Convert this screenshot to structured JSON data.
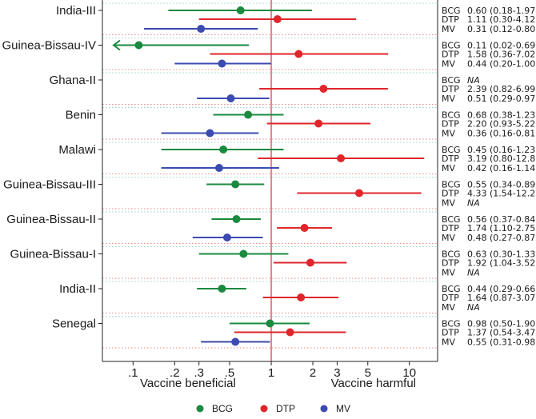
{
  "colors": {
    "BCG": "#1a8a3e",
    "DTP": "#e0262b",
    "MV": "#3b4bb0"
  },
  "chart_data": {
    "type": "forest",
    "x_scale": "log",
    "xlim": [
      0.06,
      16
    ],
    "reference_line": 1,
    "ticks": [
      {
        "value": 0.1,
        "label": ".1"
      },
      {
        "value": 0.2,
        "label": ".2"
      },
      {
        "value": 0.3,
        "label": ".3"
      },
      {
        "value": 0.5,
        "label": ".5"
      },
      {
        "value": 1,
        "label": "1"
      },
      {
        "value": 2,
        "label": "2"
      },
      {
        "value": 3,
        "label": "3"
      },
      {
        "value": 5,
        "label": "5"
      },
      {
        "value": 10,
        "label": "10"
      }
    ],
    "axis_captions": {
      "left": "Vaccine beneficial",
      "right": "Vaccine harmful"
    },
    "legend": [
      {
        "name": "BCG",
        "color_key": "BCG"
      },
      {
        "name": "DTP",
        "color_key": "DTP"
      },
      {
        "name": "MV",
        "color_key": "MV"
      }
    ],
    "studies": [
      {
        "name": "India-III",
        "rows": [
          {
            "vaccine": "BCG",
            "est": 0.6,
            "lo": 0.18,
            "hi": 1.97,
            "text": "0.60 (0.18-1.97)"
          },
          {
            "vaccine": "DTP",
            "est": 1.11,
            "lo": 0.3,
            "hi": 4.12,
            "text": "1.11 (0.30-4.12)"
          },
          {
            "vaccine": "MV",
            "est": 0.31,
            "lo": 0.12,
            "hi": 0.8,
            "text": "0.31 (0.12-0.80)"
          }
        ]
      },
      {
        "name": "Guinea-Bissau-IV",
        "rows": [
          {
            "vaccine": "BCG",
            "est": 0.11,
            "lo": 0.02,
            "hi": 0.69,
            "text": "0.11 (0.02-0.69)",
            "arrow_left": true
          },
          {
            "vaccine": "DTP",
            "est": 1.58,
            "lo": 0.36,
            "hi": 7.02,
            "text": "1.58 (0.36-7.02)"
          },
          {
            "vaccine": "MV",
            "est": 0.44,
            "lo": 0.2,
            "hi": 1.0,
            "text": "0.44 (0.20-1.00)"
          }
        ]
      },
      {
        "name": "Ghana-II",
        "rows": [
          {
            "vaccine": "BCG",
            "est": null,
            "text": "NA"
          },
          {
            "vaccine": "DTP",
            "est": 2.39,
            "lo": 0.82,
            "hi": 6.99,
            "text": "2.39 (0.82-6.99)"
          },
          {
            "vaccine": "MV",
            "est": 0.51,
            "lo": 0.29,
            "hi": 0.97,
            "text": "0.51 (0.29-0.97)"
          }
        ]
      },
      {
        "name": "Benin",
        "rows": [
          {
            "vaccine": "BCG",
            "est": 0.68,
            "lo": 0.38,
            "hi": 1.23,
            "text": "0.68 (0.38-1.23)"
          },
          {
            "vaccine": "DTP",
            "est": 2.2,
            "lo": 0.93,
            "hi": 5.22,
            "text": "2.20 (0.93-5.22)"
          },
          {
            "vaccine": "MV",
            "est": 0.36,
            "lo": 0.16,
            "hi": 0.81,
            "text": "0.36 (0.16-0.81)"
          }
        ]
      },
      {
        "name": "Malawi",
        "rows": [
          {
            "vaccine": "BCG",
            "est": 0.45,
            "lo": 0.16,
            "hi": 1.23,
            "text": "0.45 (0.16-1.23)"
          },
          {
            "vaccine": "DTP",
            "est": 3.19,
            "lo": 0.8,
            "hi": 12.8,
            "text": "3.19 (0.80-12.8)"
          },
          {
            "vaccine": "MV",
            "est": 0.42,
            "lo": 0.16,
            "hi": 1.14,
            "text": "0.42 (0.16-1.14)"
          }
        ]
      },
      {
        "name": "Guinea-Bissau-III",
        "rows": [
          {
            "vaccine": "BCG",
            "est": 0.55,
            "lo": 0.34,
            "hi": 0.89,
            "text": "0.55 (0.34-0.89)"
          },
          {
            "vaccine": "DTP",
            "est": 4.33,
            "lo": 1.54,
            "hi": 12.2,
            "text": "4.33 (1.54-12.2)"
          },
          {
            "vaccine": "MV",
            "est": null,
            "text": "NA"
          }
        ]
      },
      {
        "name": "Guinea-Bissau-II",
        "rows": [
          {
            "vaccine": "BCG",
            "est": 0.56,
            "lo": 0.37,
            "hi": 0.84,
            "text": "0.56 (0.37-0.84)"
          },
          {
            "vaccine": "DTP",
            "est": 1.74,
            "lo": 1.1,
            "hi": 2.75,
            "text": "1.74 (1.10-2.75)"
          },
          {
            "vaccine": "MV",
            "est": 0.48,
            "lo": 0.27,
            "hi": 0.87,
            "text": "0.48 (0.27-0.87)"
          }
        ]
      },
      {
        "name": "Guinea-Bissau-I",
        "rows": [
          {
            "vaccine": "BCG",
            "est": 0.63,
            "lo": 0.3,
            "hi": 1.33,
            "text": "0.63 (0.30-1.33)"
          },
          {
            "vaccine": "DTP",
            "est": 1.92,
            "lo": 1.04,
            "hi": 3.52,
            "text": "1.92 (1.04-3.52)"
          },
          {
            "vaccine": "MV",
            "est": null,
            "text": "NA"
          }
        ]
      },
      {
        "name": "India-II",
        "rows": [
          {
            "vaccine": "BCG",
            "est": 0.44,
            "lo": 0.29,
            "hi": 0.66,
            "text": "0.44 (0.29-0.66)"
          },
          {
            "vaccine": "DTP",
            "est": 1.64,
            "lo": 0.87,
            "hi": 3.07,
            "text": "1.64 (0.87-3.07)"
          },
          {
            "vaccine": "MV",
            "est": null,
            "text": "NA"
          }
        ]
      },
      {
        "name": "Senegal",
        "rows": [
          {
            "vaccine": "BCG",
            "est": 0.98,
            "lo": 0.5,
            "hi": 1.9,
            "text": "0.98 (0.50-1.90)"
          },
          {
            "vaccine": "DTP",
            "est": 1.37,
            "lo": 0.54,
            "hi": 3.47,
            "text": "1.37 (0.54-3.47)"
          },
          {
            "vaccine": "MV",
            "est": 0.55,
            "lo": 0.31,
            "hi": 0.98,
            "text": "0.55 (0.31-0.98)"
          }
        ]
      }
    ]
  }
}
